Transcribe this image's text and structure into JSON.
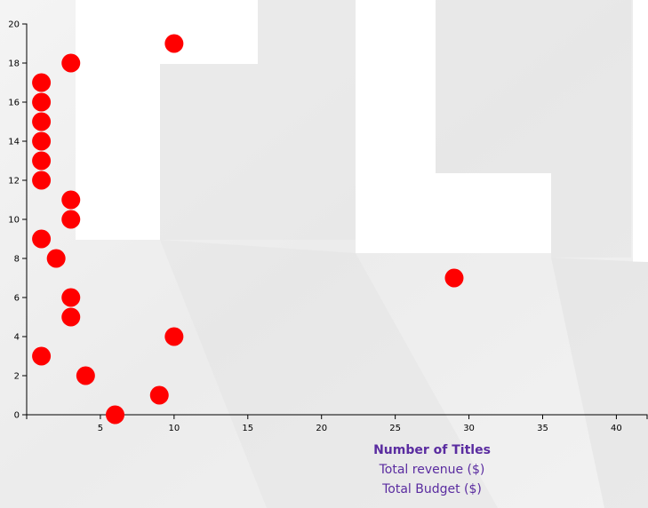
{
  "chart_data": {
    "type": "scatter",
    "title": "",
    "xlabel": "",
    "ylabel": "",
    "xlim": [
      0,
      41
    ],
    "ylim": [
      0,
      20
    ],
    "x_ticks": [
      5,
      10,
      15,
      20,
      25,
      30,
      35,
      40
    ],
    "y_ticks": [
      0,
      2,
      4,
      6,
      8,
      10,
      12,
      14,
      16,
      18,
      20
    ],
    "grid": false,
    "point_color": "#ff0000",
    "points": [
      {
        "x": 1,
        "y": 17
      },
      {
        "x": 1,
        "y": 16
      },
      {
        "x": 1,
        "y": 15
      },
      {
        "x": 1,
        "y": 14
      },
      {
        "x": 1,
        "y": 13
      },
      {
        "x": 1,
        "y": 12
      },
      {
        "x": 1,
        "y": 9
      },
      {
        "x": 1,
        "y": 3
      },
      {
        "x": 2,
        "y": 8
      },
      {
        "x": 3,
        "y": 18
      },
      {
        "x": 3,
        "y": 11
      },
      {
        "x": 3,
        "y": 10
      },
      {
        "x": 3,
        "y": 6
      },
      {
        "x": 3,
        "y": 5
      },
      {
        "x": 4,
        "y": 2
      },
      {
        "x": 6,
        "y": 0
      },
      {
        "x": 9,
        "y": 1
      },
      {
        "x": 10,
        "y": 19
      },
      {
        "x": 10,
        "y": 4
      },
      {
        "x": 29,
        "y": 7
      }
    ]
  },
  "axis_menu": {
    "accent_color": "#5a2ca0",
    "options": [
      {
        "label": "Number of Titles",
        "selected": true
      },
      {
        "label": "Total revenue ($)",
        "selected": false
      },
      {
        "label": "Total Budget ($)",
        "selected": false
      }
    ]
  }
}
